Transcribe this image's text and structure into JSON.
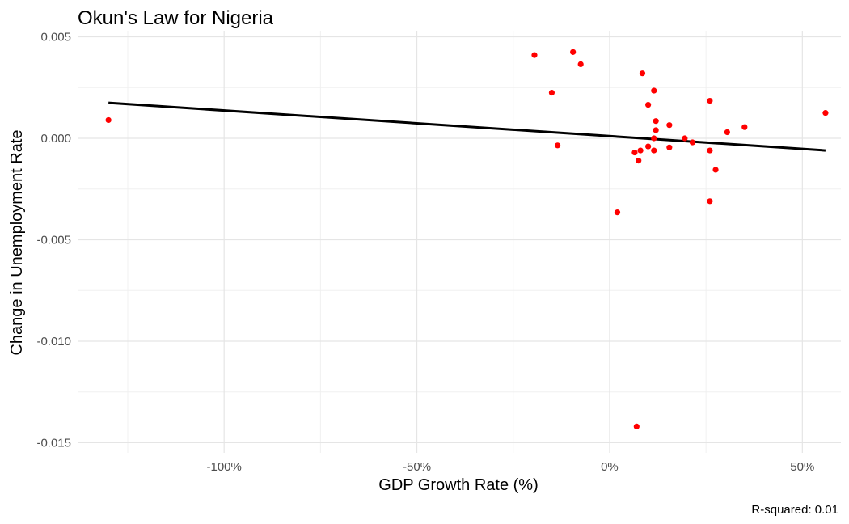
{
  "chart_data": {
    "type": "scatter",
    "title": "Okun's Law for Nigeria",
    "xlabel": "GDP Growth Rate (%)",
    "ylabel": "Change in Unemployment Rate",
    "caption": "R-squared: 0.01",
    "xlim": [
      -1.38,
      0.6
    ],
    "ylim": [
      -0.0155,
      0.0053
    ],
    "x_ticks": [
      {
        "value": -1.0,
        "label": "-100%"
      },
      {
        "value": -0.5,
        "label": "-50%"
      },
      {
        "value": 0.0,
        "label": "0%"
      },
      {
        "value": 0.5,
        "label": "50%"
      }
    ],
    "y_ticks": [
      {
        "value": 0.005,
        "label": "0.005"
      },
      {
        "value": 0.0,
        "label": "0.000"
      },
      {
        "value": -0.005,
        "label": "-0.005"
      },
      {
        "value": -0.01,
        "label": "-0.010"
      },
      {
        "value": -0.015,
        "label": "-0.015"
      }
    ],
    "grid": true,
    "point_color": "#ff0000",
    "line_color": "#000000",
    "points": [
      {
        "x": -1.3,
        "y": 0.0009
      },
      {
        "x": -0.195,
        "y": 0.0041
      },
      {
        "x": -0.095,
        "y": 0.00425
      },
      {
        "x": -0.075,
        "y": 0.00365
      },
      {
        "x": -0.15,
        "y": 0.00225
      },
      {
        "x": -0.135,
        "y": -0.00035
      },
      {
        "x": 0.085,
        "y": 0.0032
      },
      {
        "x": 0.115,
        "y": 0.00235
      },
      {
        "x": 0.1,
        "y": 0.00165
      },
      {
        "x": 0.26,
        "y": 0.00185
      },
      {
        "x": 0.12,
        "y": 0.00085
      },
      {
        "x": 0.12,
        "y": 0.0004
      },
      {
        "x": 0.155,
        "y": 0.00065
      },
      {
        "x": 0.305,
        "y": 0.0003
      },
      {
        "x": 0.35,
        "y": 0.00055
      },
      {
        "x": 0.56,
        "y": 0.00125
      },
      {
        "x": 0.195,
        "y": 0.0
      },
      {
        "x": 0.215,
        "y": -0.0002
      },
      {
        "x": 0.115,
        "y": 0.0
      },
      {
        "x": 0.1,
        "y": -0.0004
      },
      {
        "x": 0.115,
        "y": -0.0006
      },
      {
        "x": 0.08,
        "y": -0.0006
      },
      {
        "x": 0.065,
        "y": -0.0007
      },
      {
        "x": 0.155,
        "y": -0.00045
      },
      {
        "x": 0.26,
        "y": -0.0006
      },
      {
        "x": 0.075,
        "y": -0.0011
      },
      {
        "x": 0.275,
        "y": -0.00155
      },
      {
        "x": 0.02,
        "y": -0.00365
      },
      {
        "x": 0.26,
        "y": -0.0031
      },
      {
        "x": 0.07,
        "y": -0.0142
      }
    ],
    "fit_line": {
      "x": [
        -1.3,
        0.56
      ],
      "y": [
        0.00175,
        -0.0006
      ]
    }
  }
}
